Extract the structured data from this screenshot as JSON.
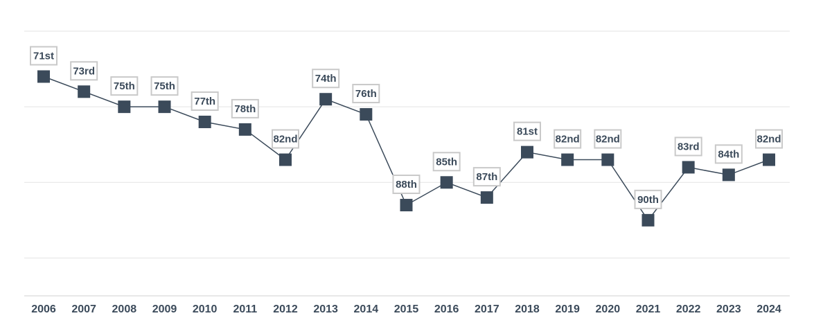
{
  "chart_data": {
    "type": "line",
    "title": "",
    "xlabel": "",
    "ylabel": "",
    "y_axis": "inverted rank",
    "ylim": [
      65,
      100
    ],
    "grid": true,
    "y_tick_labels_shown": false,
    "x": [
      "2006",
      "2007",
      "2008",
      "2009",
      "2010",
      "2011",
      "2012",
      "2013",
      "2014",
      "2015",
      "2016",
      "2017",
      "2018",
      "2019",
      "2020",
      "2021",
      "2022",
      "2023",
      "2024"
    ],
    "series": [
      {
        "values": [
          71,
          73,
          75,
          75,
          77,
          78,
          82,
          74,
          76,
          88,
          85,
          87,
          81,
          82,
          82,
          90,
          83,
          84,
          82
        ],
        "data_labels": [
          "71st",
          "73rd",
          "75th",
          "75th",
          "77th",
          "78th",
          "82nd",
          "74th",
          "76th",
          "88th",
          "85th",
          "87th",
          "81st",
          "82nd",
          "82nd",
          "90th",
          "83rd",
          "84th",
          "82nd"
        ],
        "color": "#3b4a5a"
      }
    ],
    "colors": {
      "line": "#3b4a5a",
      "marker": "#3b4a5a",
      "label_border": "#c9c9c9",
      "grid": "#e3e3e3",
      "text": "#3b4a5a"
    }
  }
}
